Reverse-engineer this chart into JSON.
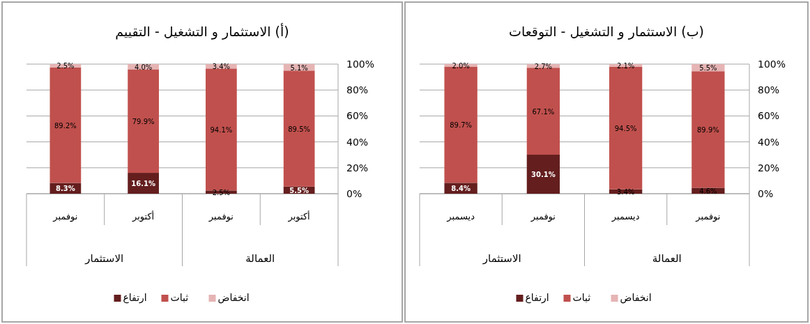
{
  "chart_data": [
    {
      "type": "bar",
      "stacked": true,
      "title": "(أ) الاستثمار و التشغيل - التقييم",
      "categories": [
        "نوفمبر",
        "أكتوبر",
        "نوفمبر",
        "أكتوبر"
      ],
      "annotations": [
        "الاستثمار",
        "العمالة"
      ],
      "series": [
        {
          "name": "ارتفاع",
          "color": "#641e1e",
          "values": [
            8.3,
            16.1,
            2.5,
            5.5
          ],
          "value_labels": [
            "8.3%",
            "16.1%",
            "2.5%",
            "5.5%"
          ]
        },
        {
          "name": "ثبات",
          "color": "#c0504d",
          "values": [
            89.2,
            79.9,
            94.1,
            89.5
          ],
          "value_labels": [
            "89.2%",
            "79.9%",
            "94.1%",
            "89.5%"
          ]
        },
        {
          "name": "انخفاض",
          "color": "#e6b4b4",
          "values": [
            2.5,
            4.0,
            3.4,
            5.1
          ],
          "value_labels": [
            "2.5%",
            "4.0%",
            "3.4%",
            "5.1%"
          ]
        }
      ],
      "ylim": [
        0,
        100
      ],
      "yticks": [
        {
          "value": 0,
          "label": "0%"
        },
        {
          "value": 20,
          "label": "20%"
        },
        {
          "value": 40,
          "label": "40%"
        },
        {
          "value": 60,
          "label": "60%"
        },
        {
          "value": 80,
          "label": "80%"
        },
        {
          "value": 100,
          "label": "100%"
        }
      ],
      "grid": "y",
      "legend": "bottom"
    },
    {
      "type": "bar",
      "stacked": true,
      "title": "(ب) الاستثمار و التشغيل - التوقعات",
      "categories": [
        "ديسمبر",
        "نوفمبر",
        "ديسمبر",
        "نوفمبر"
      ],
      "annotations": [
        "الاستثمار",
        "العمالة"
      ],
      "series": [
        {
          "name": "ارتفاع",
          "color": "#641e1e",
          "values": [
            8.4,
            30.1,
            3.4,
            4.6
          ],
          "value_labels": [
            "8.4%",
            "30.1%",
            "3.4%",
            "4.6%"
          ]
        },
        {
          "name": "ثبات",
          "color": "#c0504d",
          "values": [
            89.7,
            67.1,
            94.5,
            89.9
          ],
          "value_labels": [
            "89.7%",
            "67.1%",
            "94.5%",
            "89.9%"
          ]
        },
        {
          "name": "انخفاض",
          "color": "#e6b4b4",
          "values": [
            2.0,
            2.7,
            2.1,
            5.5
          ],
          "value_labels": [
            "2.0%",
            "2.7%",
            "2.1%",
            "5.5%"
          ]
        }
      ],
      "ylim": [
        0,
        100
      ],
      "yticks": [
        {
          "value": 0,
          "label": "0%"
        },
        {
          "value": 20,
          "label": "20%"
        },
        {
          "value": 40,
          "label": "40%"
        },
        {
          "value": 60,
          "label": "60%"
        },
        {
          "value": 80,
          "label": "80%"
        },
        {
          "value": 100,
          "label": "100%"
        }
      ],
      "grid": "y",
      "legend": "bottom"
    }
  ]
}
